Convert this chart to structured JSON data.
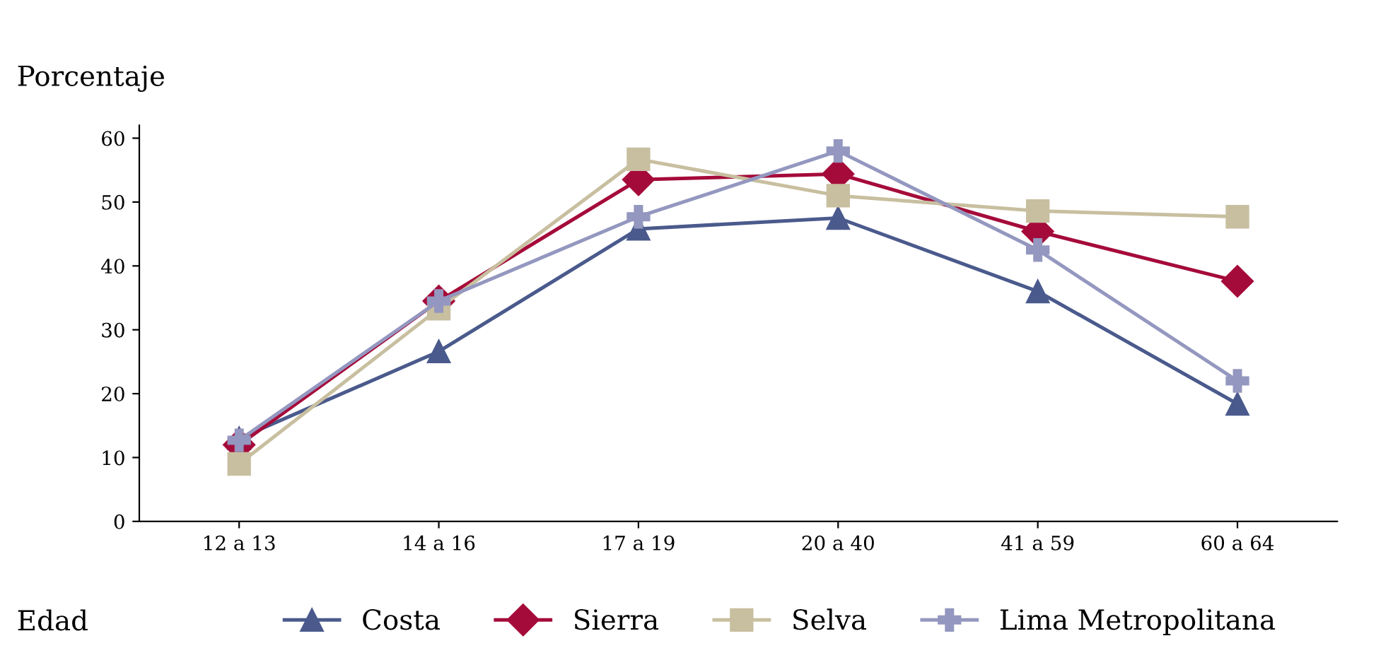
{
  "chart_data": {
    "type": "line",
    "xlabel": "Edad",
    "ylabel": "Porcentaje",
    "categories": [
      "12 a 13",
      "14 a 16",
      "17 a 19",
      "20 a 40",
      "41 a 59",
      "60 a 64"
    ],
    "series": [
      {
        "name": "Costa",
        "color": "#4a5a8c",
        "marker": "triangle",
        "values": [
          13,
          26.6,
          45.8,
          47.5,
          36,
          18.4
        ]
      },
      {
        "name": "Sierra",
        "color": "#a50b3a",
        "marker": "diamond",
        "values": [
          12,
          34.5,
          53.5,
          54.4,
          45.4,
          37.6
        ]
      },
      {
        "name": "Selva",
        "color": "#c8bfa0",
        "marker": "square",
        "values": [
          9,
          33.3,
          56.7,
          51,
          48.6,
          47.7
        ]
      },
      {
        "name": "Lima Metropolitana",
        "color": "#9497bf",
        "marker": "cross",
        "values": [
          12.7,
          34.5,
          47.7,
          58,
          42.5,
          22
        ]
      }
    ],
    "ylim": [
      0,
      62
    ],
    "yticks": [
      0,
      10,
      20,
      30,
      40,
      50,
      60
    ],
    "grid": false,
    "legend": "bottom",
    "line_style": "solid"
  }
}
